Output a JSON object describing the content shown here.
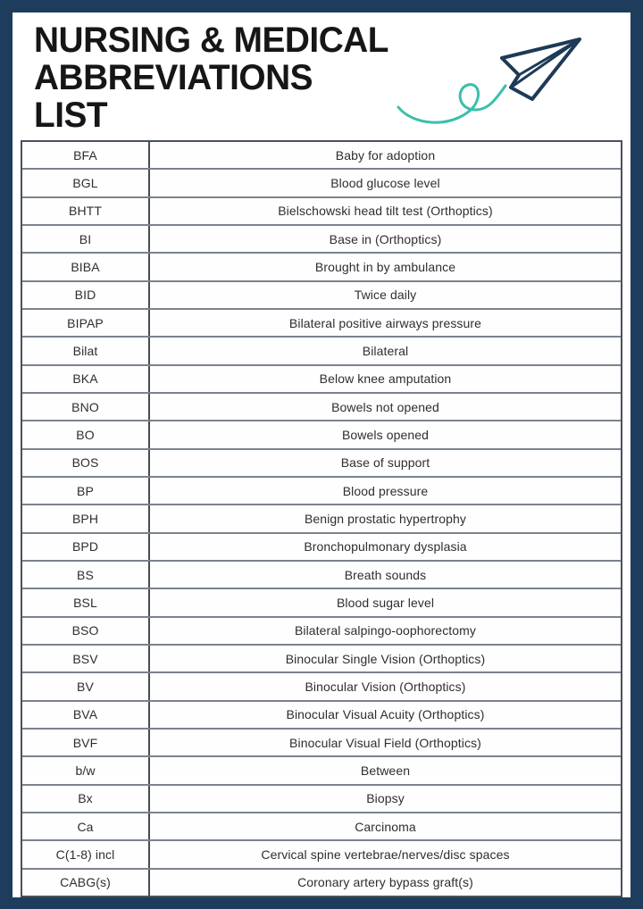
{
  "header": {
    "title_lines": [
      "NURSING & MEDICAL",
      "ABBREVIATIONS",
      "LIST"
    ],
    "decoration": "paper-plane-with-teal-swirl-trail"
  },
  "colors": {
    "frame_navy": "#1e3d5c",
    "card_white": "#ffffff",
    "title_text": "#161616",
    "cell_text": "#2e2e2e",
    "row_divider": "#7b828c",
    "column_divider": "#454d57",
    "plane_stroke": "#1d3a57",
    "swirl_teal": "#3bbfa9"
  },
  "table": {
    "columns": [
      "abbreviation",
      "meaning"
    ],
    "rows": [
      {
        "abbr": "BFA",
        "meaning": "Baby for adoption"
      },
      {
        "abbr": "BGL",
        "meaning": "Blood glucose level"
      },
      {
        "abbr": "BHTT",
        "meaning": "Bielschowski head tilt test (Orthoptics)"
      },
      {
        "abbr": "BI",
        "meaning": "Base in (Orthoptics)"
      },
      {
        "abbr": "BIBA",
        "meaning": "Brought in by ambulance"
      },
      {
        "abbr": "BID",
        "meaning": "Twice daily"
      },
      {
        "abbr": "BIPAP",
        "meaning": "Bilateral positive airways pressure"
      },
      {
        "abbr": "Bilat",
        "meaning": "Bilateral"
      },
      {
        "abbr": "BKA",
        "meaning": "Below knee amputation"
      },
      {
        "abbr": "BNO",
        "meaning": "Bowels not opened"
      },
      {
        "abbr": "BO",
        "meaning": "Bowels opened"
      },
      {
        "abbr": "BOS",
        "meaning": "Base of support"
      },
      {
        "abbr": "BP",
        "meaning": "Blood pressure"
      },
      {
        "abbr": "BPH",
        "meaning": "Benign prostatic hypertrophy"
      },
      {
        "abbr": "BPD",
        "meaning": "Bronchopulmonary dysplasia"
      },
      {
        "abbr": "BS",
        "meaning": "Breath sounds"
      },
      {
        "abbr": "BSL",
        "meaning": "Blood sugar level"
      },
      {
        "abbr": "BSO",
        "meaning": "Bilateral salpingo-oophorectomy"
      },
      {
        "abbr": "BSV",
        "meaning": "Binocular Single Vision (Orthoptics)"
      },
      {
        "abbr": "BV",
        "meaning": "Binocular Vision (Orthoptics)"
      },
      {
        "abbr": "BVA",
        "meaning": "Binocular Visual Acuity (Orthoptics)"
      },
      {
        "abbr": "BVF",
        "meaning": "Binocular Visual Field (Orthoptics)"
      },
      {
        "abbr": "b/w",
        "meaning": "Between"
      },
      {
        "abbr": "Bx",
        "meaning": "Biopsy"
      },
      {
        "abbr": "Ca",
        "meaning": "Carcinoma"
      },
      {
        "abbr": "C(1-8) incl",
        "meaning": "Cervical spine vertebrae/nerves/disc spaces"
      },
      {
        "abbr": "CABG(s)",
        "meaning": "Coronary artery bypass graft(s)"
      }
    ]
  }
}
